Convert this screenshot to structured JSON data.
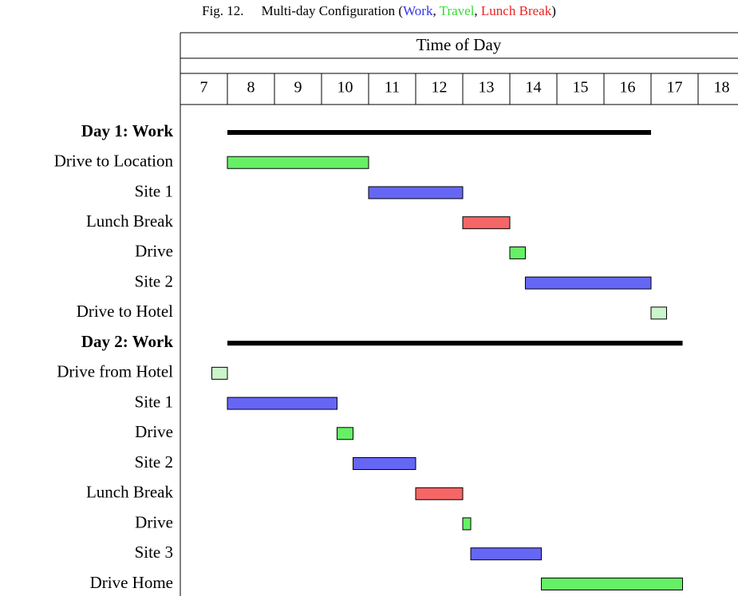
{
  "chart_data": {
    "type": "gantt",
    "caption_label": "Fig. 12.",
    "title_parts": [
      {
        "text": "Multi-day Configuration ("
      },
      {
        "text": "Work",
        "color": "#3333ee"
      },
      {
        "text": ", "
      },
      {
        "text": "Travel",
        "color": "#33dd33"
      },
      {
        "text": ", "
      },
      {
        "text": "Lunch Break",
        "color": "#ee2222"
      },
      {
        "text": ")"
      }
    ],
    "axis_title": "Time of Day",
    "xlim": [
      7,
      19
    ],
    "xticks": [
      7,
      8,
      9,
      10,
      11,
      12,
      13,
      14,
      15,
      16,
      17,
      18
    ],
    "tasks": [
      {
        "name": "Day 1: Work",
        "start": 8,
        "end": 17,
        "color": "#000000",
        "summary": true
      },
      {
        "name": "Drive to Location",
        "start": 8,
        "end": 11,
        "color": "#66f066"
      },
      {
        "name": "Site 1",
        "start": 11,
        "end": 13,
        "color": "#6666f5"
      },
      {
        "name": "Lunch Break",
        "start": 13,
        "end": 14,
        "color": "#f56666"
      },
      {
        "name": "Drive",
        "start": 14,
        "end": 14.33,
        "color": "#66f066"
      },
      {
        "name": "Site 2",
        "start": 14.33,
        "end": 17,
        "color": "#6666f5"
      },
      {
        "name": "Drive to Hotel",
        "start": 17,
        "end": 17.33,
        "color": "#ccf5cc"
      },
      {
        "name": "Day 2: Work",
        "start": 8,
        "end": 17.67,
        "color": "#000000",
        "summary": true
      },
      {
        "name": "Drive from Hotel",
        "start": 7.67,
        "end": 8,
        "color": "#ccf5cc"
      },
      {
        "name": "Site 1",
        "start": 8,
        "end": 10.33,
        "color": "#6666f5"
      },
      {
        "name": "Drive",
        "start": 10.33,
        "end": 10.67,
        "color": "#66f066"
      },
      {
        "name": "Site 2",
        "start": 10.67,
        "end": 12,
        "color": "#6666f5"
      },
      {
        "name": "Lunch Break",
        "start": 12,
        "end": 13,
        "color": "#f56666"
      },
      {
        "name": "Drive",
        "start": 13,
        "end": 13.17,
        "color": "#66f066"
      },
      {
        "name": "Site 3",
        "start": 13.17,
        "end": 14.67,
        "color": "#6666f5"
      },
      {
        "name": "Drive Home",
        "start": 14.67,
        "end": 17.67,
        "color": "#66f066"
      }
    ]
  }
}
